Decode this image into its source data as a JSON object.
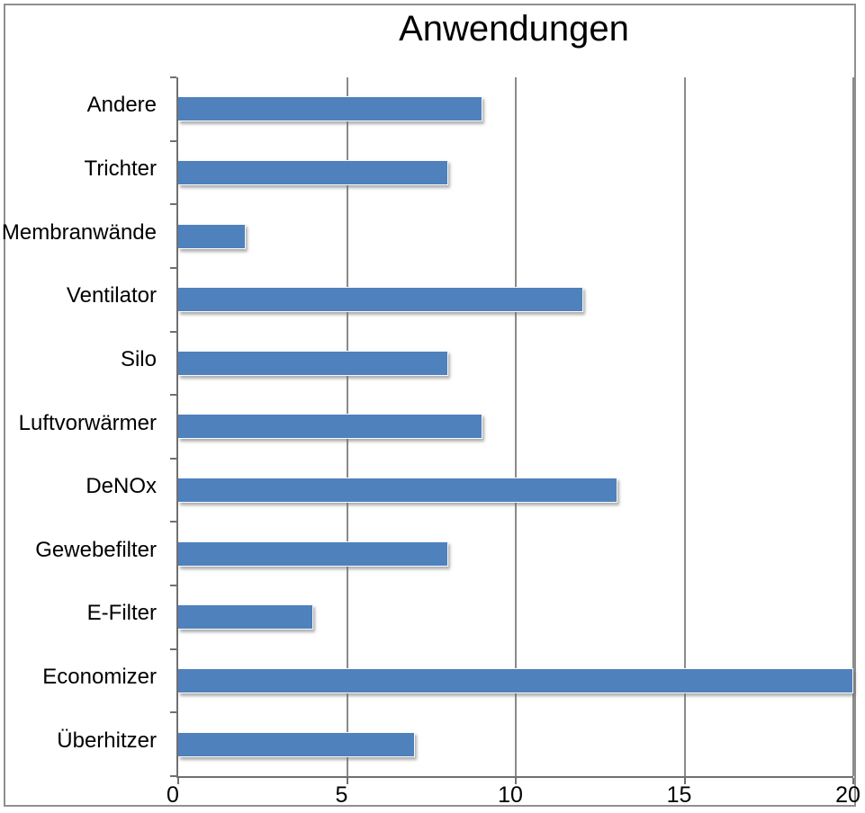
{
  "chart_data": {
    "type": "bar",
    "orientation": "horizontal",
    "title": "Anwendungen",
    "categories": [
      "Andere",
      "Trichter",
      "Membranwände",
      "Ventilator",
      "Silo",
      "Luftvorwärmer",
      "DeNOx",
      "Gewebefilter",
      "E-Filter",
      "Economizer",
      "Überhitzer"
    ],
    "values": [
      9,
      8,
      2,
      12,
      8,
      9,
      13,
      8,
      4,
      20,
      7
    ],
    "xlabel": "",
    "ylabel": "",
    "xlim": [
      0,
      20
    ],
    "x_ticks": [
      0,
      5,
      10,
      15,
      20
    ],
    "grid": "vertical-gridlines-at-x-ticks",
    "legend": "none",
    "bar_color": "#4F81BD",
    "gridline_color": "#8a8a8a",
    "axis_color": "#707070",
    "title_color": "#000000",
    "label_color": "#000000"
  }
}
